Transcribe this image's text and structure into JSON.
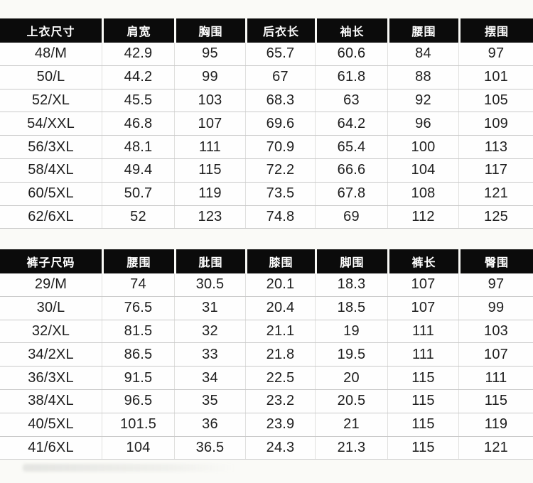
{
  "colors": {
    "page_bg": "#fafaf7",
    "header_bg": "#0b0b0b",
    "header_text": "#ffffff",
    "body_text": "#1e1e1e",
    "row_border": "#c9c9c9",
    "column_border": "#e0e0de"
  },
  "chart_data": [
    {
      "type": "table",
      "title": "上衣尺寸",
      "headers": [
        "上衣尺寸",
        "肩宽",
        "胸围",
        "后衣长",
        "袖长",
        "腰围",
        "摆围"
      ],
      "rows": [
        [
          "48/M",
          "42.9",
          "95",
          "65.7",
          "60.6",
          "84",
          "97"
        ],
        [
          "50/L",
          "44.2",
          "99",
          "67",
          "61.8",
          "88",
          "101"
        ],
        [
          "52/XL",
          "45.5",
          "103",
          "68.3",
          "63",
          "92",
          "105"
        ],
        [
          "54/XXL",
          "46.8",
          "107",
          "69.6",
          "64.2",
          "96",
          "109"
        ],
        [
          "56/3XL",
          "48.1",
          "111",
          "70.9",
          "65.4",
          "100",
          "113"
        ],
        [
          "58/4XL",
          "49.4",
          "115",
          "72.2",
          "66.6",
          "104",
          "117"
        ],
        [
          "60/5XL",
          "50.7",
          "119",
          "73.5",
          "67.8",
          "108",
          "121"
        ],
        [
          "62/6XL",
          "52",
          "123",
          "74.8",
          "69",
          "112",
          "125"
        ]
      ]
    },
    {
      "type": "table",
      "title": "裤子尺码",
      "headers": [
        "裤子尺码",
        "腰围",
        "肶围",
        "膝围",
        "脚围",
        "裤长",
        "臀围"
      ],
      "rows": [
        [
          "29/M",
          "74",
          "30.5",
          "20.1",
          "18.3",
          "107",
          "97"
        ],
        [
          "30/L",
          "76.5",
          "31",
          "20.4",
          "18.5",
          "107",
          "99"
        ],
        [
          "32/XL",
          "81.5",
          "32",
          "21.1",
          "19",
          "111",
          "103"
        ],
        [
          "34/2XL",
          "86.5",
          "33",
          "21.8",
          "19.5",
          "111",
          "107"
        ],
        [
          "36/3XL",
          "91.5",
          "34",
          "22.5",
          "20",
          "115",
          "111"
        ],
        [
          "38/4XL",
          "96.5",
          "35",
          "23.2",
          "20.5",
          "115",
          "115"
        ],
        [
          "40/5XL",
          "101.5",
          "36",
          "23.9",
          "21",
          "115",
          "119"
        ],
        [
          "41/6XL",
          "104",
          "36.5",
          "24.3",
          "21.3",
          "115",
          "121"
        ]
      ]
    }
  ]
}
